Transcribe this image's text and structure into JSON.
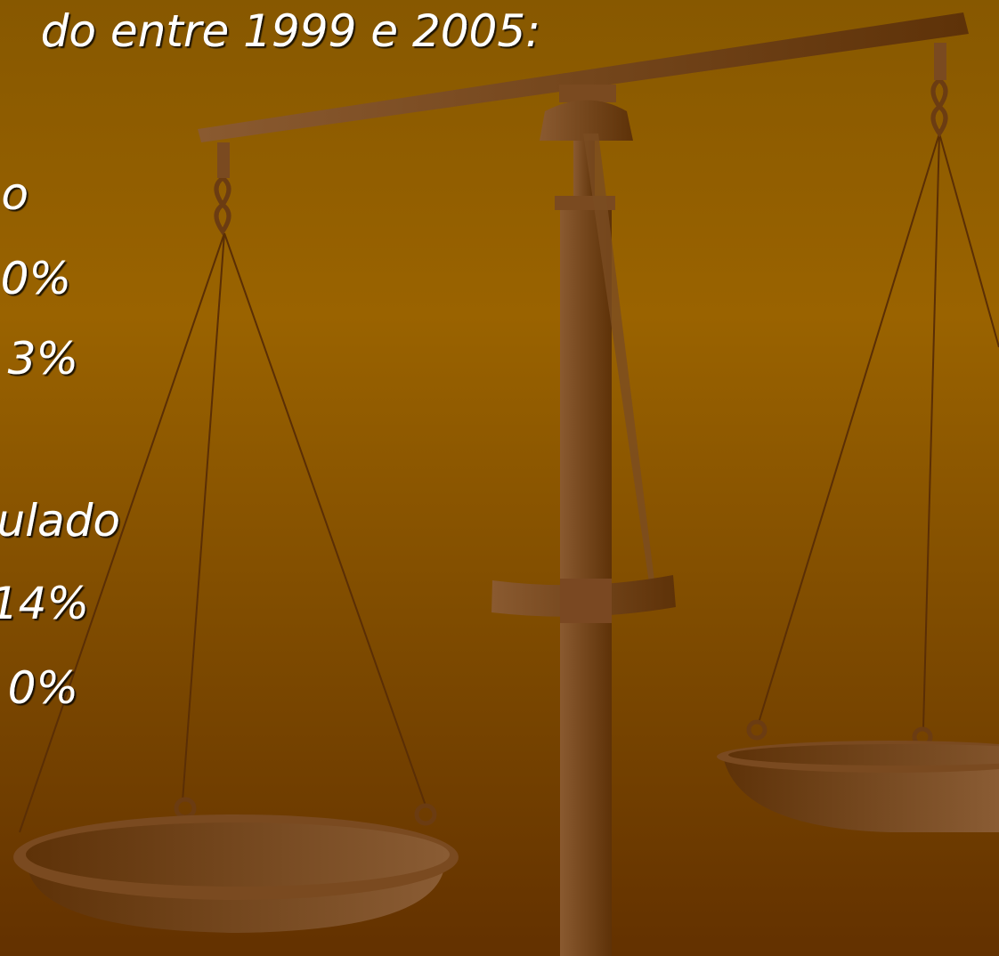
{
  "slide": {
    "lines": [
      "do entre 1999 e 2005:",
      "o",
      "0%",
      "3%",
      "ulado",
      "14%",
      "0%"
    ]
  }
}
